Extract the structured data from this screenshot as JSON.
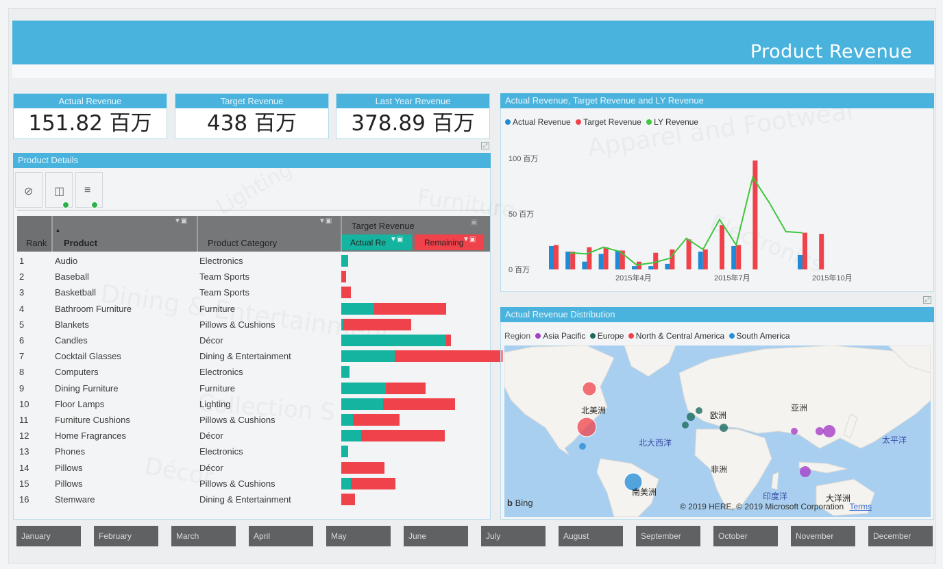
{
  "banner": {
    "title": "Product Revenue"
  },
  "kpis": [
    {
      "label": "Actual Revenue",
      "value": "151.82 百万"
    },
    {
      "label": "Target Revenue",
      "value": "438 百万"
    },
    {
      "label": "Last Year Revenue",
      "value": "378.89 百万"
    }
  ],
  "watermarks": [
    "Apparel and Footwear",
    "Lighting",
    "Furniture",
    "Electronics",
    "Dining & Entertainment",
    "Collection S",
    "Décor"
  ],
  "product_details": {
    "title": "Product Details",
    "columns": {
      "rank": "Rank",
      "product": "Product",
      "category": "Product Category",
      "target": "Target Revenue",
      "actual_pct": "Actual Re",
      "remaining": "Remaining"
    },
    "rows": [
      {
        "rank": "1",
        "product": "Audio",
        "category": "Electronics",
        "actual": 0.06,
        "remaining": 0.0
      },
      {
        "rank": "2",
        "product": "Baseball",
        "category": "Team Sports",
        "actual": 0.0,
        "remaining": 0.04
      },
      {
        "rank": "3",
        "product": "Basketball",
        "category": "Team Sports",
        "actual": 0.0,
        "remaining": 0.08
      },
      {
        "rank": "4",
        "product": "Bathroom Furniture",
        "category": "Furniture",
        "actual": 0.28,
        "remaining": 0.62
      },
      {
        "rank": "5",
        "product": "Blankets",
        "category": "Pillows & Cushions",
        "actual": 0.02,
        "remaining": 0.58
      },
      {
        "rank": "6",
        "product": "Candles",
        "category": "Décor",
        "actual": 0.9,
        "remaining": 0.04
      },
      {
        "rank": "7",
        "product": "Cocktail Glasses",
        "category": "Dining & Entertainment",
        "actual": 0.46,
        "remaining": 0.93
      },
      {
        "rank": "8",
        "product": "Computers",
        "category": "Electronics",
        "actual": 0.07,
        "remaining": 0.0
      },
      {
        "rank": "9",
        "product": "Dining Furniture",
        "category": "Furniture",
        "actual": 0.38,
        "remaining": 0.34
      },
      {
        "rank": "10",
        "product": "Floor Lamps",
        "category": "Lighting",
        "actual": 0.36,
        "remaining": 0.62
      },
      {
        "rank": "11",
        "product": "Furniture Cushions",
        "category": "Pillows & Cushions",
        "actual": 0.1,
        "remaining": 0.4
      },
      {
        "rank": "12",
        "product": "Home Fragrances",
        "category": "Décor",
        "actual": 0.17,
        "remaining": 0.72
      },
      {
        "rank": "13",
        "product": "Phones",
        "category": "Electronics",
        "actual": 0.06,
        "remaining": 0.0
      },
      {
        "rank": "14",
        "product": "Pillows",
        "category": "Décor",
        "actual": 0.0,
        "remaining": 0.37
      },
      {
        "rank": "15",
        "product": "Pillows",
        "category": "Pillows & Cushions",
        "actual": 0.08,
        "remaining": 0.38
      },
      {
        "rank": "16",
        "product": "Stemware",
        "category": "Dining & Entertainment",
        "actual": 0.0,
        "remaining": 0.12
      }
    ]
  },
  "revenue_chart": {
    "title": "Actual Revenue, Target Revenue  and LY Revenue",
    "legend": [
      {
        "name": "Actual Revenue",
        "color": "#1f8ad6"
      },
      {
        "name": "Target Revenue",
        "color": "#f0424a"
      },
      {
        "name": "LY Revenue",
        "color": "#3ec63e"
      }
    ],
    "y_ticks": [
      "100 百万",
      "50 百万",
      "0 百万"
    ],
    "x_ticks": [
      "2015年4月",
      "2015年7月",
      "2015年10月"
    ]
  },
  "chart_data": {
    "type": "bar",
    "title": "Actual Revenue, Target Revenue  and LY Revenue",
    "ylim": [
      0,
      100
    ],
    "y_unit": "百万",
    "groups": [
      {
        "actual": 21,
        "target": 22,
        "ly": null
      },
      {
        "actual": 16,
        "target": 16,
        "ly": 15
      },
      {
        "actual": 7,
        "target": 20,
        "ly": 14
      },
      {
        "actual": 14,
        "target": 20,
        "ly": 20
      },
      {
        "actual": 17,
        "target": 17,
        "ly": 16
      },
      {
        "actual": 3,
        "target": 7,
        "ly": 4
      },
      {
        "actual": 3,
        "target": 15,
        "ly": 6
      },
      {
        "actual": 5,
        "target": 18,
        "ly": 10
      },
      {
        "actual": 0,
        "target": 27,
        "ly": 28
      },
      {
        "actual": 16,
        "target": 18,
        "ly": 18
      },
      {
        "actual": 0,
        "target": 40,
        "ly": 45
      },
      {
        "actual": 21,
        "target": 22,
        "ly": 22
      },
      {
        "actual": 0,
        "target": 98,
        "ly": 83
      },
      {
        "actual": 0,
        "target": 0,
        "ly": 60
      },
      {
        "actual": 0,
        "target": 0,
        "ly": 34
      },
      {
        "actual": 13,
        "target": 33,
        "ly": 33
      },
      {
        "actual": 0,
        "target": 32,
        "ly": null
      }
    ]
  },
  "map": {
    "title": "Actual Revenue Distribution",
    "legend_label": "Region",
    "regions": [
      {
        "name": "Asia Pacific",
        "color": "#a63fc9"
      },
      {
        "name": "Europe",
        "color": "#1d6b5f"
      },
      {
        "name": "North & Central America",
        "color": "#f0424a"
      },
      {
        "name": "South America",
        "color": "#2a8fd8"
      }
    ],
    "labels": {
      "na": "北美洲",
      "eu": "欧洲",
      "asia": "亚洲",
      "af": "非洲",
      "sa": "南美洲",
      "oc": "大洋洲",
      "atl": "北大西洋",
      "pac": "太平洋",
      "ind": "印度洋"
    },
    "copyright": "© 2019 HERE, © 2019 Microsoft Corporation",
    "terms": "Terms",
    "bing": "Bing"
  },
  "months": [
    "January",
    "February",
    "March",
    "April",
    "May",
    "June",
    "July",
    "August",
    "September",
    "October",
    "November",
    "December"
  ]
}
